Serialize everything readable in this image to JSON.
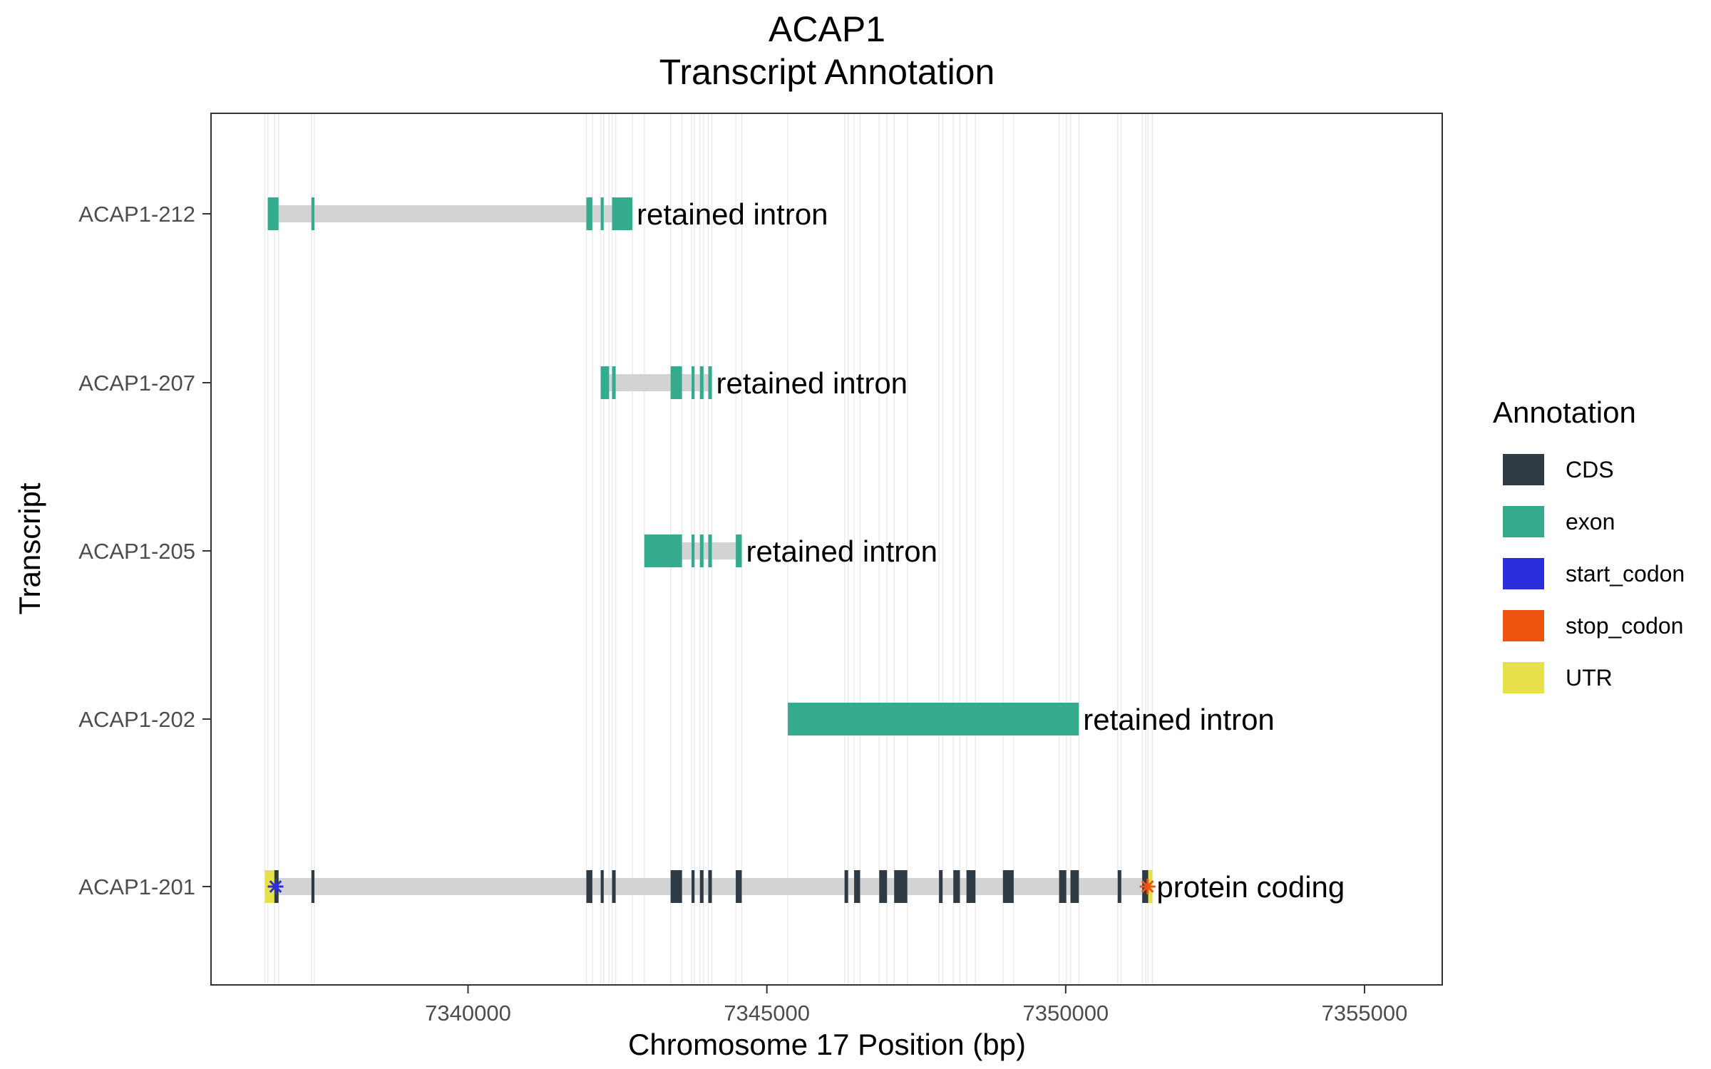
{
  "chart_data": {
    "type": "gene-track",
    "title": "ACAP1",
    "subtitle": "Transcript Annotation",
    "xlabel": "Chromosome 17 Position (bp)",
    "ylabel": "Transcript",
    "xlim": [
      7335700,
      7356300
    ],
    "x_ticks": [
      7340000,
      7345000,
      7350000,
      7355000
    ],
    "x_tick_labels": [
      "7340000",
      "7345000",
      "7350000",
      "7355000"
    ],
    "grid": "vertical lines at feature boundaries",
    "legend": {
      "title": "Annotation",
      "position": "right",
      "entries": [
        {
          "key": "CDS",
          "label": "CDS",
          "color": "#2E3B45"
        },
        {
          "key": "exon",
          "label": "exon",
          "color": "#35AB8D"
        },
        {
          "key": "start_codon",
          "label": "start_codon",
          "color": "#2B2FDB"
        },
        {
          "key": "stop_codon",
          "label": "stop_codon",
          "color": "#EC5410"
        },
        {
          "key": "UTR",
          "label": "UTR",
          "color": "#E8E04A"
        }
      ]
    },
    "intron_color": "#D3D3D3",
    "transcripts": [
      {
        "name": "ACAP1-212",
        "biotype": "retained intron",
        "start": 7336650,
        "end": 7342750,
        "features": [
          {
            "type": "exon",
            "start": 7336650,
            "end": 7336830
          },
          {
            "type": "exon",
            "start": 7337380,
            "end": 7337430
          },
          {
            "type": "exon",
            "start": 7341980,
            "end": 7342080
          },
          {
            "type": "exon",
            "start": 7342220,
            "end": 7342270
          },
          {
            "type": "exon",
            "start": 7342410,
            "end": 7342750
          }
        ]
      },
      {
        "name": "ACAP1-207",
        "biotype": "retained intron",
        "start": 7342220,
        "end": 7344080,
        "features": [
          {
            "type": "exon",
            "start": 7342220,
            "end": 7342360
          },
          {
            "type": "exon",
            "start": 7342410,
            "end": 7342470
          },
          {
            "type": "exon",
            "start": 7343390,
            "end": 7343580
          },
          {
            "type": "exon",
            "start": 7343740,
            "end": 7343790
          },
          {
            "type": "exon",
            "start": 7343880,
            "end": 7343940
          },
          {
            "type": "exon",
            "start": 7344020,
            "end": 7344080
          }
        ]
      },
      {
        "name": "ACAP1-205",
        "biotype": "retained intron",
        "start": 7342950,
        "end": 7344580,
        "features": [
          {
            "type": "exon",
            "start": 7342950,
            "end": 7343580
          },
          {
            "type": "exon",
            "start": 7343740,
            "end": 7343790
          },
          {
            "type": "exon",
            "start": 7343880,
            "end": 7343940
          },
          {
            "type": "exon",
            "start": 7344020,
            "end": 7344080
          },
          {
            "type": "exon",
            "start": 7344480,
            "end": 7344580
          }
        ]
      },
      {
        "name": "ACAP1-202",
        "biotype": "retained intron",
        "start": 7345350,
        "end": 7350220,
        "features": [
          {
            "type": "exon",
            "start": 7345350,
            "end": 7350220
          }
        ]
      },
      {
        "name": "ACAP1-201",
        "biotype": "protein coding",
        "start": 7336600,
        "end": 7351450,
        "features": [
          {
            "type": "UTR",
            "start": 7336600,
            "end": 7336830
          },
          {
            "type": "UTR",
            "start": 7351340,
            "end": 7351450
          },
          {
            "type": "CDS",
            "start": 7336760,
            "end": 7336830
          },
          {
            "type": "CDS",
            "start": 7337380,
            "end": 7337430
          },
          {
            "type": "CDS",
            "start": 7341980,
            "end": 7342080
          },
          {
            "type": "CDS",
            "start": 7342220,
            "end": 7342270
          },
          {
            "type": "CDS",
            "start": 7342410,
            "end": 7342470
          },
          {
            "type": "CDS",
            "start": 7343390,
            "end": 7343580
          },
          {
            "type": "CDS",
            "start": 7343740,
            "end": 7343790
          },
          {
            "type": "CDS",
            "start": 7343880,
            "end": 7343940
          },
          {
            "type": "CDS",
            "start": 7344020,
            "end": 7344080
          },
          {
            "type": "CDS",
            "start": 7344480,
            "end": 7344580
          },
          {
            "type": "CDS",
            "start": 7346300,
            "end": 7346360
          },
          {
            "type": "CDS",
            "start": 7346460,
            "end": 7346560
          },
          {
            "type": "CDS",
            "start": 7346880,
            "end": 7347010
          },
          {
            "type": "CDS",
            "start": 7347130,
            "end": 7347350
          },
          {
            "type": "CDS",
            "start": 7347880,
            "end": 7347940
          },
          {
            "type": "CDS",
            "start": 7348120,
            "end": 7348230
          },
          {
            "type": "CDS",
            "start": 7348340,
            "end": 7348490
          },
          {
            "type": "CDS",
            "start": 7348950,
            "end": 7349130
          },
          {
            "type": "CDS",
            "start": 7349890,
            "end": 7350010
          },
          {
            "type": "CDS",
            "start": 7350080,
            "end": 7350220
          },
          {
            "type": "CDS",
            "start": 7350870,
            "end": 7350930
          },
          {
            "type": "CDS",
            "start": 7351280,
            "end": 7351380
          }
        ],
        "markers": [
          {
            "type": "start_codon",
            "position": 7336780
          },
          {
            "type": "stop_codon",
            "position": 7351370
          }
        ]
      }
    ]
  }
}
